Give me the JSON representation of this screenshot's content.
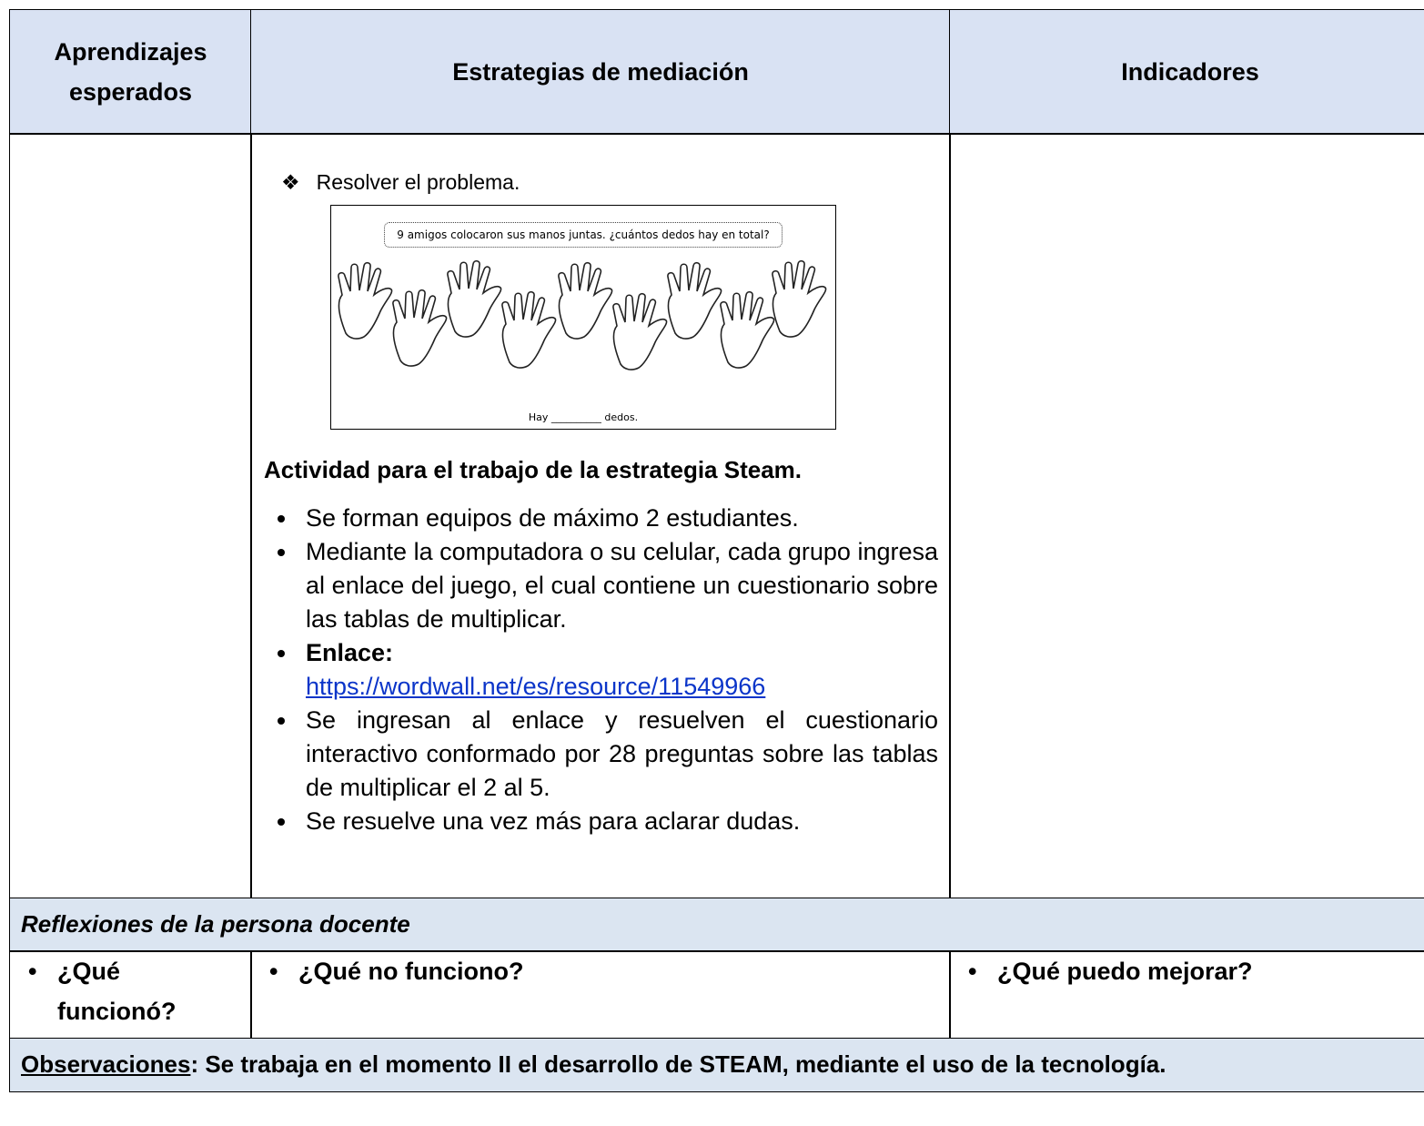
{
  "table": {
    "headers": [
      "Aprendizajes esperados",
      "Estrategias de mediación",
      "Indicadores"
    ],
    "body": {
      "step": "Resolver el problema.",
      "worksheet": {
        "question": "9 amigos colocaron sus manos juntas. ¿cuántos dedos hay en total?",
        "answer": "Hay __________ dedos."
      },
      "activity_title": "Actividad para el trabajo de la estrategia Steam.",
      "bullets": [
        "Se forman equipos de máximo 2 estudiantes.",
        "Mediante la computadora o su celular, cada grupo ingresa al enlace del juego, el cual contiene un cuestionario sobre las tablas de multiplicar.",
        "Se ingresan al enlace y resuelven el cuestionario interactivo conformado por 28 preguntas sobre las tablas de multiplicar el 2 al 5.",
        "Se resuelve una vez más para aclarar dudas."
      ],
      "link_label": "Enlace:",
      "link": "https://wordwall.net/es/resource/11549966"
    },
    "reflection_title": "Reflexiones de la persona docente",
    "questions": [
      "¿Qué funcionó?",
      "¿Qué no funciono?",
      "¿Qué puedo mejorar?"
    ],
    "observations_label": "Observaciones",
    "observations": ": Se trabaja en el momento II el desarrollo de STEAM, mediante el uso de la tecnología."
  }
}
